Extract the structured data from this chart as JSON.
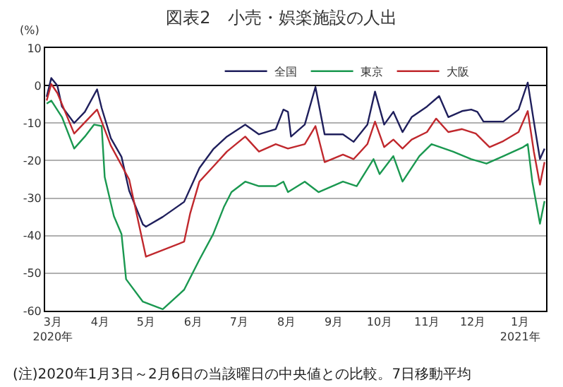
{
  "chart_data": {
    "type": "line",
    "title": "図表2　小売・娯楽施設の人出",
    "ylabel": "(%)",
    "xlim": [
      "2020-02-25",
      "2021-01-18"
    ],
    "xticks": [
      {
        "value": "2020-03-01",
        "label": "3月\n2020年"
      },
      {
        "value": "2020-04-01",
        "label": "4月"
      },
      {
        "value": "2020-05-01",
        "label": "5月"
      },
      {
        "value": "2020-06-01",
        "label": "6月"
      },
      {
        "value": "2020-07-01",
        "label": "7月"
      },
      {
        "value": "2020-08-01",
        "label": "8月"
      },
      {
        "value": "2020-09-01",
        "label": "9月"
      },
      {
        "value": "2020-10-01",
        "label": "10月"
      },
      {
        "value": "2020-11-01",
        "label": "11月"
      },
      {
        "value": "2020-12-01",
        "label": "12月"
      },
      {
        "value": "2021-01-01",
        "label": "1月\n2021年"
      }
    ],
    "ylim": [
      -60,
      10
    ],
    "yticks": [
      -60,
      -50,
      -40,
      -30,
      -20,
      -10,
      0,
      10
    ],
    "grid": "y",
    "legend": "top right",
    "marker": "none",
    "line_style": "solid",
    "series": [
      {
        "name": "全国",
        "color": "#1f1f5c",
        "x": [
          "2020-02-26",
          "2020-02-29",
          "2020-03-04",
          "2020-03-07",
          "2020-03-15",
          "2020-03-22",
          "2020-03-30",
          "2020-04-02",
          "2020-04-08",
          "2020-04-15",
          "2020-04-20",
          "2020-04-29",
          "2020-05-01",
          "2020-05-12",
          "2020-05-26",
          "2020-06-05",
          "2020-06-14",
          "2020-06-23",
          "2020-07-05",
          "2020-07-14",
          "2020-07-25",
          "2020-07-30",
          "2020-08-02",
          "2020-08-04",
          "2020-08-13",
          "2020-08-20",
          "2020-08-26",
          "2020-09-07",
          "2020-09-14",
          "2020-09-23",
          "2020-09-28",
          "2020-10-04",
          "2020-10-10",
          "2020-10-16",
          "2020-10-22",
          "2020-11-01",
          "2020-11-09",
          "2020-11-15",
          "2020-11-24",
          "2020-11-30",
          "2020-12-04",
          "2020-12-08",
          "2020-12-21",
          "2020-12-31",
          "2021-01-06",
          "2021-01-10",
          "2021-01-14",
          "2021-01-17"
        ],
        "values": [
          -3,
          2,
          0,
          -5.6,
          -10,
          -7,
          -1,
          -6,
          -14,
          -19,
          -28,
          -37,
          -37.6,
          -35,
          -31,
          -22,
          -17,
          -13.6,
          -10.4,
          -13,
          -11.6,
          -6.4,
          -7,
          -13.6,
          -10.4,
          -0.4,
          -13,
          -13,
          -15,
          -10.4,
          -1.6,
          -10.4,
          -7,
          -12.4,
          -8.4,
          -5.6,
          -2.8,
          -8.4,
          -6.8,
          -6.4,
          -7,
          -9.6,
          -9.6,
          -6.4,
          0.8,
          -9.6,
          -19.6,
          -16.8
        ]
      },
      {
        "name": "東京",
        "color": "#1a9850",
        "x": [
          "2020-02-26",
          "2020-02-29",
          "2020-03-07",
          "2020-03-15",
          "2020-03-22",
          "2020-03-28",
          "2020-04-02",
          "2020-04-04",
          "2020-04-10",
          "2020-04-15",
          "2020-04-18",
          "2020-04-29",
          "2020-05-12",
          "2020-05-26",
          "2020-06-05",
          "2020-06-14",
          "2020-06-21",
          "2020-06-26",
          "2020-07-05",
          "2020-07-14",
          "2020-07-25",
          "2020-07-30",
          "2020-08-02",
          "2020-08-13",
          "2020-08-22",
          "2020-09-07",
          "2020-09-16",
          "2020-09-27",
          "2020-10-01",
          "2020-10-10",
          "2020-10-16",
          "2020-10-27",
          "2020-11-04",
          "2020-11-18",
          "2020-11-30",
          "2020-12-10",
          "2020-12-21",
          "2021-01-03",
          "2021-01-06",
          "2021-01-09",
          "2021-01-14",
          "2021-01-17"
        ],
        "values": [
          -4.8,
          -4,
          -8.4,
          -16.8,
          -13.6,
          -10.4,
          -10.8,
          -24.4,
          -34.8,
          -39.6,
          -51.6,
          -57.6,
          -59.6,
          -54.4,
          -46.4,
          -39.6,
          -32.4,
          -28.4,
          -25.6,
          -26.8,
          -26.8,
          -25.6,
          -28.4,
          -25.6,
          -28.4,
          -25.6,
          -26.8,
          -19.6,
          -23.6,
          -18.8,
          -25.6,
          -18.8,
          -15.6,
          -17.6,
          -19.6,
          -20.8,
          -18.8,
          -16.4,
          -15.6,
          -25.6,
          -36.8,
          -30.8
        ]
      },
      {
        "name": "大阪",
        "color": "#c0282d",
        "x": [
          "2020-02-26",
          "2020-02-29",
          "2020-03-04",
          "2020-03-15",
          "2020-03-30",
          "2020-04-08",
          "2020-04-20",
          "2020-05-01",
          "2020-05-26",
          "2020-05-30",
          "2020-06-05",
          "2020-06-14",
          "2020-06-23",
          "2020-07-05",
          "2020-07-14",
          "2020-07-25",
          "2020-08-02",
          "2020-08-13",
          "2020-08-20",
          "2020-08-26",
          "2020-09-07",
          "2020-09-14",
          "2020-09-23",
          "2020-09-28",
          "2020-10-04",
          "2020-10-10",
          "2020-10-16",
          "2020-10-22",
          "2020-11-01",
          "2020-11-07",
          "2020-11-15",
          "2020-11-24",
          "2020-12-03",
          "2020-12-12",
          "2020-12-21",
          "2020-12-31",
          "2021-01-06",
          "2021-01-10",
          "2021-01-14",
          "2021-01-17"
        ],
        "values": [
          -4,
          0.4,
          -2,
          -12.8,
          -6.4,
          -16,
          -25,
          -45.6,
          -41.6,
          -34,
          -25.6,
          -21.6,
          -17.6,
          -13.6,
          -17.6,
          -15.6,
          -16.8,
          -15.6,
          -10.8,
          -20.4,
          -18.4,
          -19.6,
          -15.6,
          -9.6,
          -16.4,
          -14.4,
          -16.8,
          -14.4,
          -12.4,
          -8.8,
          -12.4,
          -11.6,
          -12.8,
          -16.4,
          -14.8,
          -12.4,
          -6.8,
          -17.6,
          -26.4,
          -20.4
        ]
      }
    ],
    "annotations": [
      "(注)2020年1月3日～2月6日の当該曜日の中央値との比較。7日移動平均"
    ]
  }
}
